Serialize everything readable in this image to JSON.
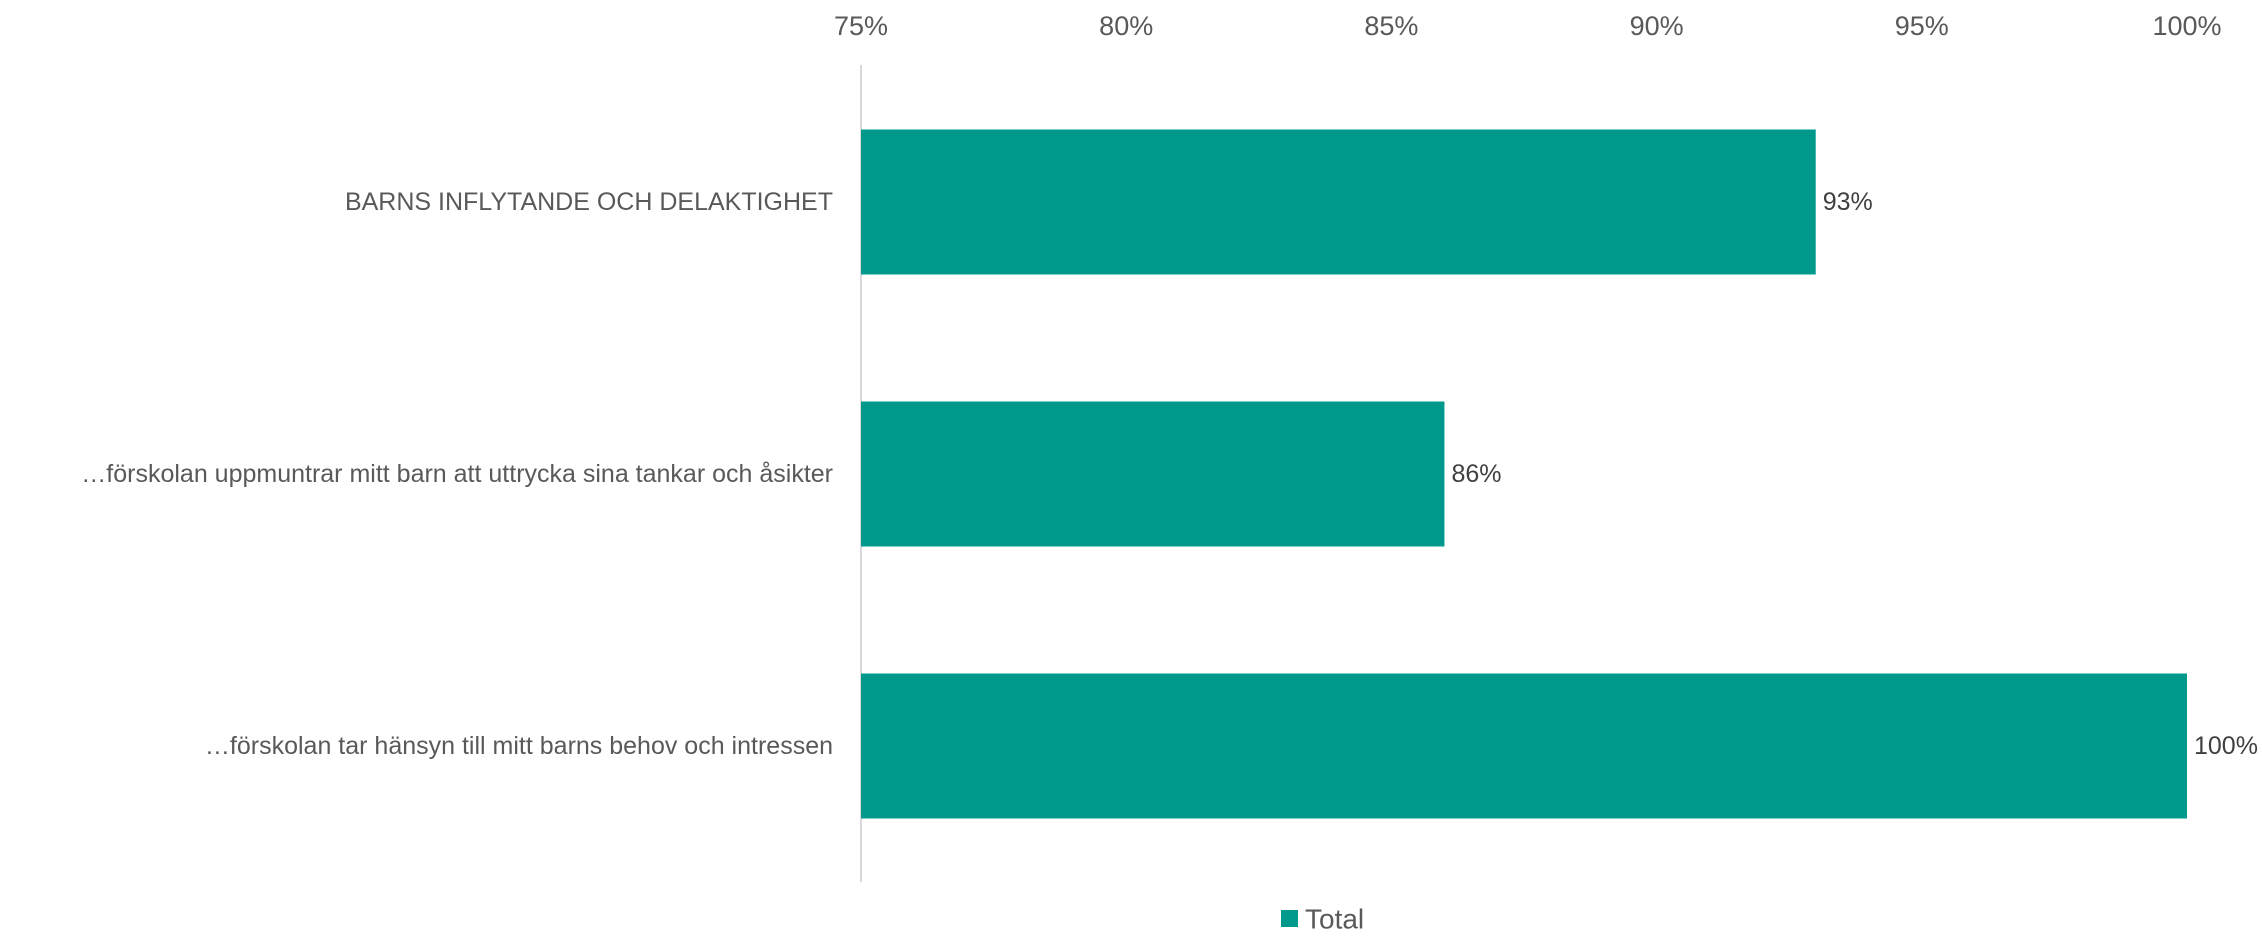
{
  "chart_data": {
    "type": "bar",
    "orientation": "horizontal",
    "title": "",
    "xlabel": "",
    "ylabel": "",
    "xlim": [
      0.75,
      1.0
    ],
    "x_ticks": [
      0.75,
      0.8,
      0.85,
      0.9,
      0.95,
      1.0
    ],
    "x_tick_labels": [
      "75%",
      "80%",
      "85%",
      "90%",
      "95%",
      "100%"
    ],
    "axis_position": "top",
    "grid": false,
    "categories": [
      "BARNS INFLYTANDE OCH DELAKTIGHET",
      "…förskolan uppmuntrar mitt barn att uttrycka sina tankar och åsikter",
      "…förskolan tar hänsyn till mitt barns behov och intressen"
    ],
    "series": [
      {
        "name": "Total",
        "values": [
          0.93,
          0.86,
          1.0
        ],
        "data_labels": [
          "93%",
          "86%",
          "100%"
        ]
      }
    ],
    "legend": {
      "position": "bottom",
      "entries": [
        "Total"
      ]
    },
    "colors": {
      "bar": "#00998c",
      "axis": "#d9d9d9"
    }
  }
}
